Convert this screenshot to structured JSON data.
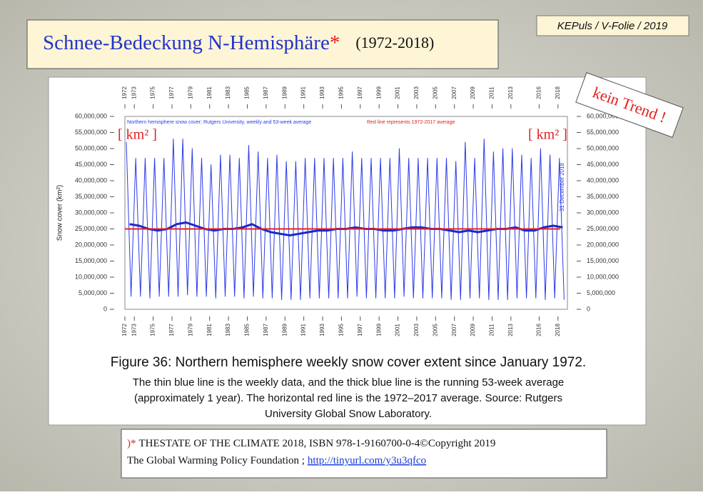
{
  "slide": {
    "title": "Schnee-Bedeckung N-Hemisphäre",
    "title_mark": "*",
    "period": "(1972-2018)",
    "tag": "KEPuls / V-Folie / 2019",
    "stamp": "kein Trend !"
  },
  "chart_data": {
    "type": "line",
    "subtitle": "Northern hemisphere snow cover; Rutgers University, weekly and 53-week average",
    "note": "Red line represents 1972-2017 average",
    "date_label": "31 December 2018",
    "ylabel": "Snow cover (km²)",
    "unit_label": "[ km² ]",
    "xlim": [
      1972,
      2019
    ],
    "xticks": [
      1972,
      1973,
      1975,
      1977,
      1979,
      1981,
      1983,
      1985,
      1987,
      1989,
      1991,
      1993,
      1995,
      1997,
      1999,
      2001,
      2003,
      2005,
      2007,
      2009,
      2011,
      2013,
      2016,
      2018
    ],
    "ylim": [
      0,
      60000000
    ],
    "yticks": [
      {
        "value": 0,
        "label": "0"
      },
      {
        "value": 5000000,
        "label": "5,000,000"
      },
      {
        "value": 10000000,
        "label": "10,000,000"
      },
      {
        "value": 15000000,
        "label": "15,000,000"
      },
      {
        "value": 20000000,
        "label": "20,000,000"
      },
      {
        "value": 25000000,
        "label": "25,000,000"
      },
      {
        "value": 30000000,
        "label": "30,000,000"
      },
      {
        "value": 35000000,
        "label": "35,000,000"
      },
      {
        "value": 40000000,
        "label": "40,000,000"
      },
      {
        "value": 45000000,
        "label": "45,000,000"
      },
      {
        "value": 50000000,
        "label": "50,000,000"
      },
      {
        "value": 55000000,
        "label": "55,000,000"
      },
      {
        "value": 60000000,
        "label": "60,000,000"
      }
    ],
    "reference_line": {
      "value": 25000000,
      "color": "#e82020"
    },
    "series": [
      {
        "color": "#2b3be8",
        "width": 1,
        "x": [
          1972.15,
          1972.65,
          1973.15,
          1973.65,
          1974.15,
          1974.65,
          1975.15,
          1975.65,
          1976.15,
          1976.65,
          1977.15,
          1977.65,
          1978.15,
          1978.65,
          1979.15,
          1979.65,
          1980.15,
          1980.65,
          1981.15,
          1981.65,
          1982.15,
          1982.65,
          1983.15,
          1983.65,
          1984.15,
          1984.65,
          1985.15,
          1985.65,
          1986.15,
          1986.65,
          1987.15,
          1987.65,
          1988.15,
          1988.65,
          1989.15,
          1989.65,
          1990.15,
          1990.65,
          1991.15,
          1991.65,
          1992.15,
          1992.65,
          1993.15,
          1993.65,
          1994.15,
          1994.65,
          1995.15,
          1995.65,
          1996.15,
          1996.65,
          1997.15,
          1997.65,
          1998.15,
          1998.65,
          1999.15,
          1999.65,
          2000.15,
          2000.65,
          2001.15,
          2001.65,
          2002.15,
          2002.65,
          2003.15,
          2003.65,
          2004.15,
          2004.65,
          2005.15,
          2005.65,
          2006.15,
          2006.65,
          2007.15,
          2007.65,
          2008.15,
          2008.65,
          2009.15,
          2009.65,
          2010.15,
          2010.65,
          2011.15,
          2011.65,
          2012.15,
          2012.65,
          2013.15,
          2013.65,
          2014.15,
          2014.65,
          2015.15,
          2015.65,
          2016.15,
          2016.65,
          2017.15,
          2017.65,
          2018.15,
          2018.65
        ],
        "values": [
          52000000,
          4000000,
          47000000,
          4000000,
          47000000,
          3500000,
          47000000,
          4000000,
          47000000,
          4000000,
          53000000,
          4000000,
          53000000,
          4500000,
          50000000,
          4000000,
          47000000,
          4000000,
          45000000,
          3500000,
          48000000,
          4000000,
          48000000,
          4000000,
          47000000,
          3500000,
          51000000,
          4000000,
          49000000,
          3500000,
          47000000,
          3500000,
          48000000,
          3000000,
          46000000,
          3000000,
          46000000,
          3000000,
          47000000,
          3500000,
          47000000,
          3500000,
          47000000,
          3500000,
          47000000,
          3500000,
          47000000,
          3500000,
          49000000,
          4000000,
          47000000,
          3500000,
          47000000,
          3500000,
          47000000,
          3500000,
          47000000,
          3500000,
          50000000,
          4000000,
          47000000,
          3500000,
          47000000,
          3500000,
          47000000,
          3500000,
          47000000,
          3500000,
          47000000,
          3000000,
          46000000,
          3000000,
          52000000,
          3500000,
          47000000,
          3500000,
          53000000,
          3000000,
          49000000,
          3000000,
          50000000,
          3000000,
          50000000,
          3500000,
          48000000,
          3500000,
          47000000,
          3500000,
          50000000,
          3000000,
          48000000,
          3500000,
          47000000,
          3000000
        ]
      },
      {
        "color": "#1a28c8",
        "width": 3,
        "x": [
          1972.5,
          1973.5,
          1974.5,
          1975.5,
          1976.5,
          1977.5,
          1978.5,
          1979.5,
          1980.5,
          1981.5,
          1982.5,
          1983.5,
          1984.5,
          1985.5,
          1986.5,
          1987.5,
          1988.5,
          1989.5,
          1990.5,
          1991.5,
          1992.5,
          1993.5,
          1994.5,
          1995.5,
          1996.5,
          1997.5,
          1998.5,
          1999.5,
          2000.5,
          2001.5,
          2002.5,
          2003.5,
          2004.5,
          2005.5,
          2006.5,
          2007.5,
          2008.5,
          2009.5,
          2010.5,
          2011.5,
          2012.5,
          2013.5,
          2014.5,
          2015.5,
          2016.5,
          2017.5,
          2018.5
        ],
        "values": [
          26500000,
          26000000,
          25000000,
          24500000,
          25000000,
          26500000,
          27000000,
          26000000,
          25000000,
          24500000,
          25000000,
          25000000,
          25500000,
          26500000,
          25000000,
          24000000,
          23500000,
          23000000,
          23500000,
          24000000,
          24500000,
          24500000,
          25000000,
          25000000,
          25500000,
          25000000,
          25000000,
          24500000,
          24500000,
          25000000,
          25500000,
          25500000,
          25000000,
          25000000,
          24500000,
          24000000,
          24500000,
          24000000,
          24500000,
          25000000,
          25000000,
          25500000,
          24500000,
          24500000,
          25500000,
          26000000,
          25500000
        ]
      }
    ]
  },
  "caption": {
    "heading": "Figure 36: Northern hemisphere weekly snow cover extent since January 1972.",
    "lines": [
      "The thin blue line is the weekly data, and the thick blue line is the running 53-week average",
      "(approximately 1 year). The horizontal red line is the 1972–2017 average. Source: Rutgers",
      "University Global Snow Laboratory."
    ]
  },
  "footer": {
    "mark": ")*",
    "line1": "THESTATE OF THE CLIMATE 2018, ISBN 978-1-9160700-0-4©Copyright 2019",
    "line2": "The Global Warming Policy Foundation ;",
    "link": "http://tinyurl.com/y3u3qfco"
  }
}
